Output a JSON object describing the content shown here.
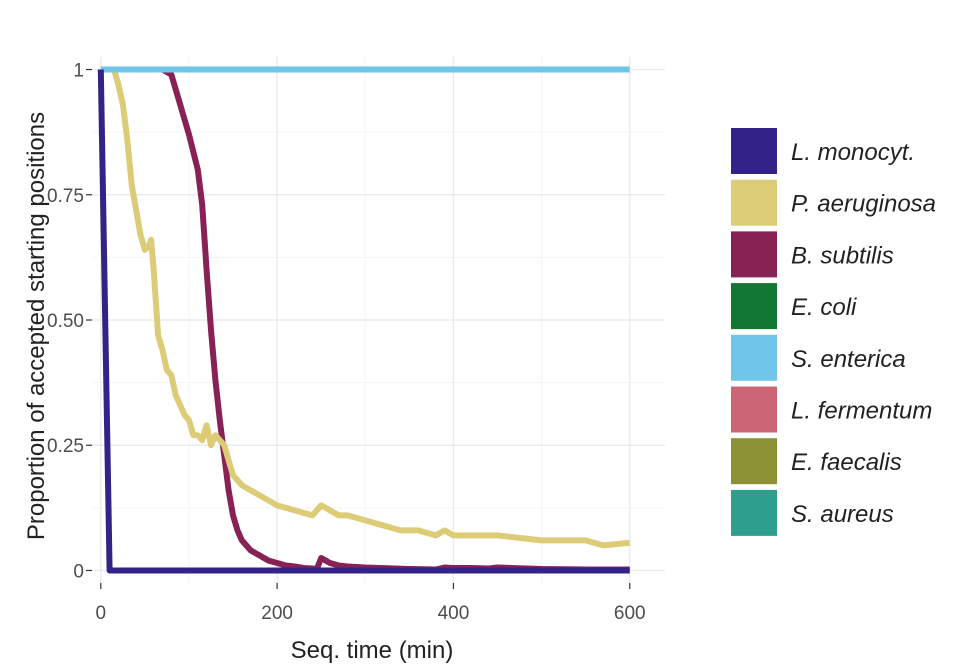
{
  "chart_data": {
    "type": "line",
    "xlabel": "Seq. time (min)",
    "ylabel": "Proportion of accepted starting positions",
    "xlim": [
      -10,
      640
    ],
    "ylim": [
      -0.025,
      1.025
    ],
    "x_ticks": [
      0,
      200,
      400,
      600
    ],
    "x_tick_labels": [
      "0",
      "200",
      "400",
      "600"
    ],
    "y_ticks": [
      0,
      0.25,
      0.5,
      0.75,
      1
    ],
    "y_tick_labels": [
      "0",
      "0.25",
      "0.50",
      "0.75",
      "1"
    ],
    "grid": true,
    "legend_position": "right",
    "series": [
      {
        "name": "L. monocyt.",
        "color": "#332288",
        "x": [
          0,
          10,
          600
        ],
        "y": [
          1,
          0,
          0
        ]
      },
      {
        "name": "P. aeruginosa",
        "color": "#DDCC77",
        "x": [
          15,
          20,
          25,
          30,
          35,
          40,
          45,
          50,
          55,
          57,
          60,
          65,
          70,
          75,
          80,
          85,
          90,
          95,
          100,
          105,
          110,
          115,
          120,
          125,
          130,
          140,
          150,
          160,
          170,
          180,
          190,
          200,
          220,
          240,
          250,
          260,
          270,
          280,
          300,
          320,
          340,
          360,
          380,
          390,
          400,
          450,
          500,
          550,
          570,
          600
        ],
        "y": [
          1,
          0.97,
          0.93,
          0.86,
          0.77,
          0.72,
          0.67,
          0.64,
          0.65,
          0.66,
          0.6,
          0.47,
          0.44,
          0.4,
          0.39,
          0.35,
          0.33,
          0.31,
          0.3,
          0.27,
          0.27,
          0.26,
          0.29,
          0.25,
          0.27,
          0.25,
          0.19,
          0.17,
          0.16,
          0.15,
          0.14,
          0.13,
          0.12,
          0.11,
          0.13,
          0.12,
          0.11,
          0.11,
          0.1,
          0.09,
          0.08,
          0.08,
          0.07,
          0.08,
          0.07,
          0.07,
          0.06,
          0.06,
          0.05,
          0.055
        ]
      },
      {
        "name": "B. subtilis",
        "color": "#882255",
        "x": [
          70,
          80,
          90,
          100,
          110,
          115,
          120,
          125,
          130,
          135,
          140,
          145,
          150,
          155,
          160,
          170,
          180,
          190,
          200,
          210,
          220,
          230,
          240,
          245,
          250,
          260,
          270,
          280,
          300,
          350,
          380,
          390,
          400,
          420,
          440,
          450,
          500,
          550,
          600
        ],
        "y": [
          1,
          0.99,
          0.93,
          0.87,
          0.8,
          0.73,
          0.6,
          0.48,
          0.38,
          0.3,
          0.23,
          0.16,
          0.11,
          0.08,
          0.06,
          0.04,
          0.03,
          0.02,
          0.015,
          0.01,
          0.008,
          0.005,
          0.004,
          0.003,
          0.025,
          0.015,
          0.01,
          0.008,
          0.006,
          0.003,
          0.002,
          0.006,
          0.005,
          0.005,
          0.004,
          0.006,
          0.003,
          0.002,
          0.002
        ]
      },
      {
        "name": "E. coli",
        "color": "#117733",
        "x": [],
        "y": []
      },
      {
        "name": "S. enterica",
        "color": "#6FC5EA",
        "x": [
          0,
          600
        ],
        "y": [
          1,
          1
        ]
      },
      {
        "name": "L. fermentum",
        "color": "#CC6677",
        "x": [],
        "y": []
      },
      {
        "name": "E. faecalis",
        "color": "#8C9135",
        "x": [],
        "y": []
      },
      {
        "name": "S. aureus",
        "color": "#2E9E8E",
        "x": [],
        "y": []
      }
    ],
    "draw_order": [
      2,
      1,
      4,
      0
    ]
  }
}
